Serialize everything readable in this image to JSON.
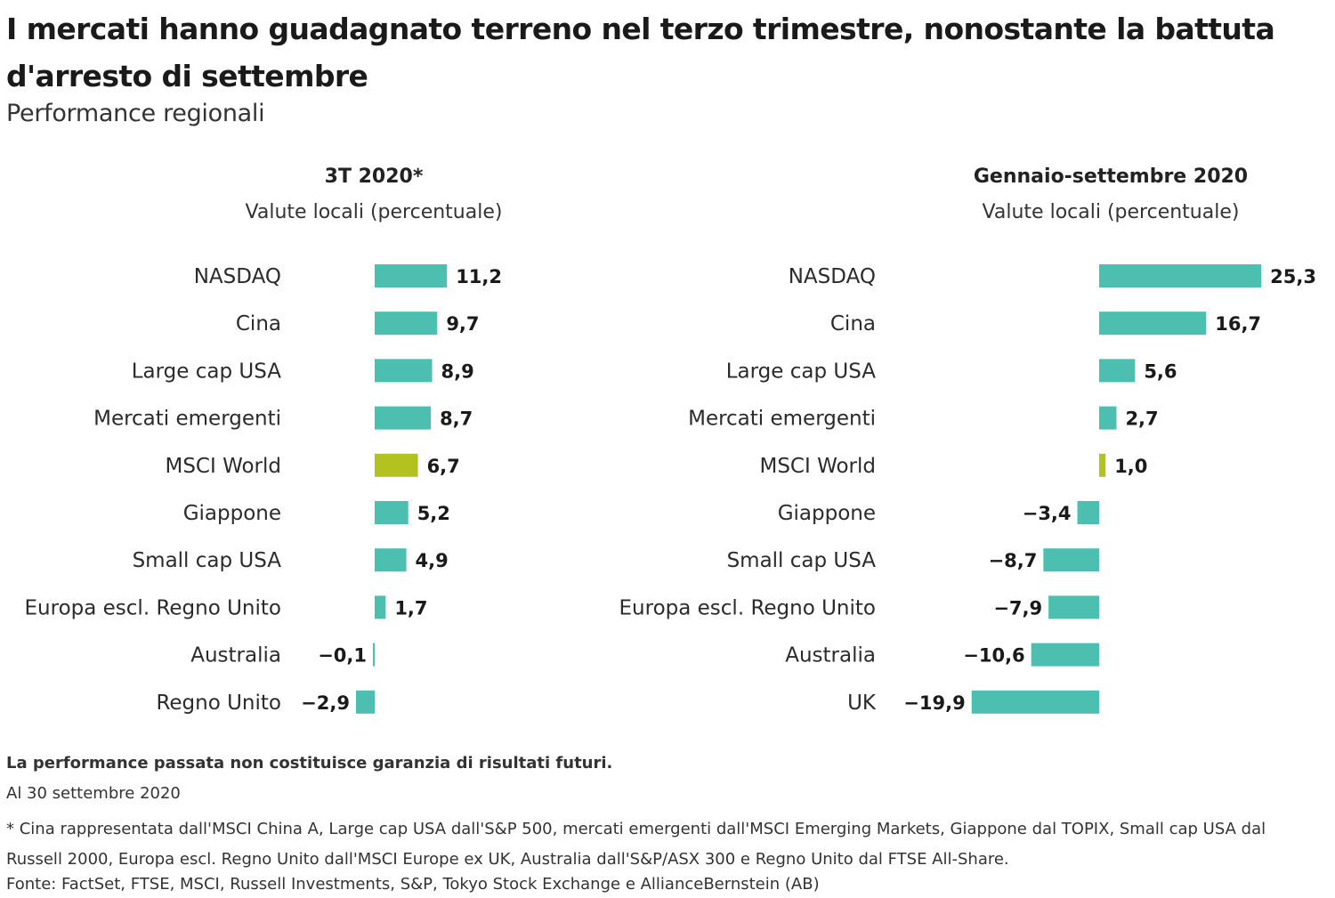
{
  "title": "I mercati hanno guadagnato terreno nel terzo trimestre, nonostante la battuta d'arresto di settembre",
  "subtitle": "Performance regionali",
  "colors": {
    "bar": "#4dbfb0",
    "highlight": "#b3c21f"
  },
  "chart_data": [
    {
      "type": "bar",
      "orientation": "horizontal",
      "title": "3T 2020*",
      "subtitle": "Valute locali (percentuale)",
      "categories": [
        "NASDAQ",
        "Cina",
        "Large cap USA",
        "Mercati emergenti",
        "MSCI World",
        "Giappone",
        "Small cap USA",
        "Europa escl. Regno Unito",
        "Australia",
        "Regno Unito"
      ],
      "values": [
        11.2,
        9.7,
        8.9,
        8.7,
        6.7,
        5.2,
        4.9,
        1.7,
        -0.1,
        -2.9
      ],
      "labels": [
        "11,2",
        "9,7",
        "8,9",
        "8,7",
        "6,7",
        "5,2",
        "4,9",
        "1,7",
        "−0,1",
        "−2,9"
      ],
      "highlight": "MSCI World"
    },
    {
      "type": "bar",
      "orientation": "horizontal",
      "title": "Gennaio-settembre 2020",
      "subtitle": "Valute locali (percentuale)",
      "categories": [
        "NASDAQ",
        "Cina",
        "Large cap USA",
        "Mercati emergenti",
        "MSCI World",
        "Giappone",
        "Small cap USA",
        "Europa escl. Regno Unito",
        "Australia",
        "UK"
      ],
      "values": [
        25.3,
        16.7,
        5.6,
        2.7,
        1.0,
        -3.4,
        -8.7,
        -7.9,
        -10.6,
        -19.9
      ],
      "labels": [
        "25,3",
        "16,7",
        "5,6",
        "2,7",
        "1,0",
        "−3,4",
        "−8,7",
        "−7,9",
        "−10,6",
        "−19,9"
      ],
      "highlight": "MSCI World"
    }
  ],
  "footer": {
    "disclaimer": "La performance passata non costituisce garanzia di risultati futuri.",
    "as_of": "Al 30 settembre 2020",
    "note": "* Cina rappresentata dall'MSCI China A, Large cap USA dall'S&P 500, mercati emergenti dall'MSCI Emerging Markets, Giappone dal TOPIX, Small cap USA dal Russell 2000, Europa escl. Regno Unito dall'MSCI Europe ex UK, Australia dall'S&P/ASX 300 e Regno Unito dal FTSE All-Share.",
    "source": "Fonte:  FactSet, FTSE, MSCI, Russell Investments, S&P, Tokyo Stock Exchange e AllianceBernstein (AB)"
  }
}
